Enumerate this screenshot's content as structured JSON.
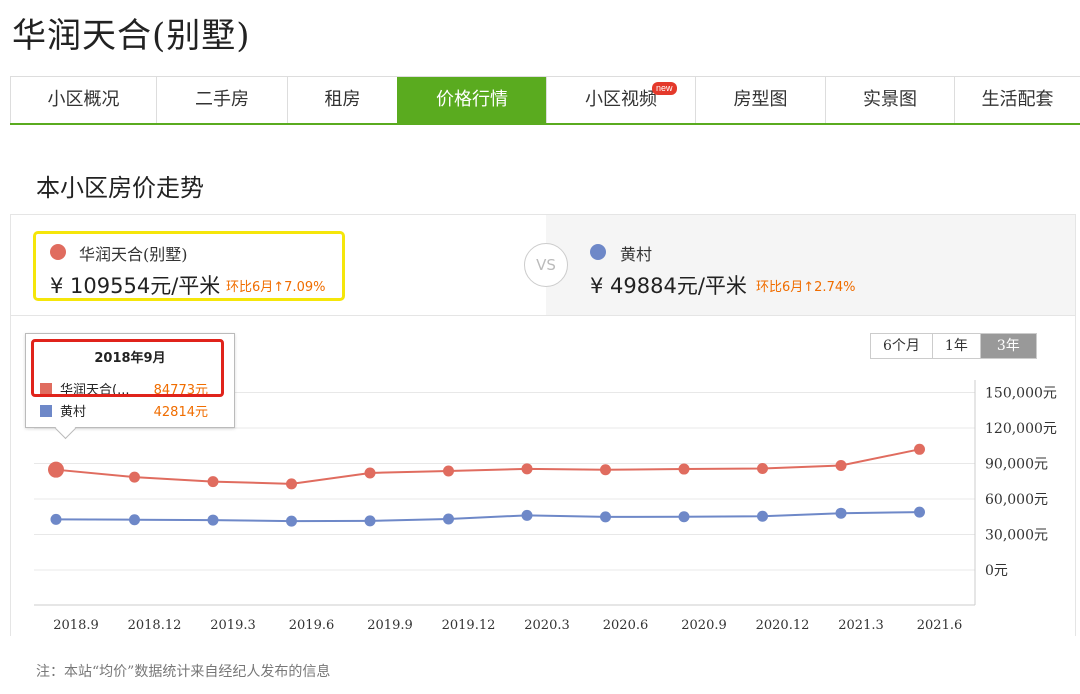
{
  "page_title": "华润天合(别墅)",
  "tabs": [
    {
      "label": "小区概况"
    },
    {
      "label": "二手房"
    },
    {
      "label": "租房"
    },
    {
      "label": "价格行情",
      "active": true
    },
    {
      "label": "小区视频",
      "badge": "new"
    },
    {
      "label": "房型图"
    },
    {
      "label": "实景图"
    },
    {
      "label": "生活配套"
    }
  ],
  "section_title": "本小区房价走势",
  "compare": {
    "left": {
      "name": "华润天合(别墅)",
      "price": "¥ 109554元/平米",
      "ratio": "环比6月↑7.09%",
      "color": "#e06c5f"
    },
    "vs": "VS",
    "right": {
      "name": "黄村",
      "price": "¥ 49884元/平米",
      "ratio": "环比6月↑2.74%",
      "color": "#6e88c8"
    }
  },
  "range_buttons": [
    "6个月",
    "1年",
    "3年"
  ],
  "tooltip": {
    "date": "2018年9月",
    "rows": [
      {
        "name": "华润天合(...",
        "value": "84773元",
        "color": "#e06c5f"
      },
      {
        "name": "黄村",
        "value": "42814元",
        "color": "#6e88c8"
      }
    ]
  },
  "chart_data": {
    "type": "line",
    "x": [
      "2018.9",
      "2018.12",
      "2019.3",
      "2019.6",
      "2019.9",
      "2019.12",
      "2020.3",
      "2020.6",
      "2020.9",
      "2020.12",
      "2021.3",
      "2021.6"
    ],
    "series": [
      {
        "name": "华润天合(别墅)",
        "color": "#e06c5f",
        "values": [
          84773,
          78500,
          74700,
          72800,
          82000,
          83700,
          85500,
          84700,
          85300,
          85800,
          88300,
          102000
        ]
      },
      {
        "name": "黄村",
        "color": "#6e88c8",
        "values": [
          42814,
          42500,
          42200,
          41300,
          41500,
          43100,
          46200,
          44900,
          45000,
          45400,
          48000,
          48900
        ]
      }
    ],
    "yticks": [
      "0元",
      "30,000元",
      "60,000元",
      "90,000元",
      "120,000元",
      "150,000元"
    ],
    "ylim": [
      0,
      150000
    ],
    "legend": "none",
    "grid": true
  },
  "note": "注：本站“均价”数据统计来自经纪人发布的信息"
}
